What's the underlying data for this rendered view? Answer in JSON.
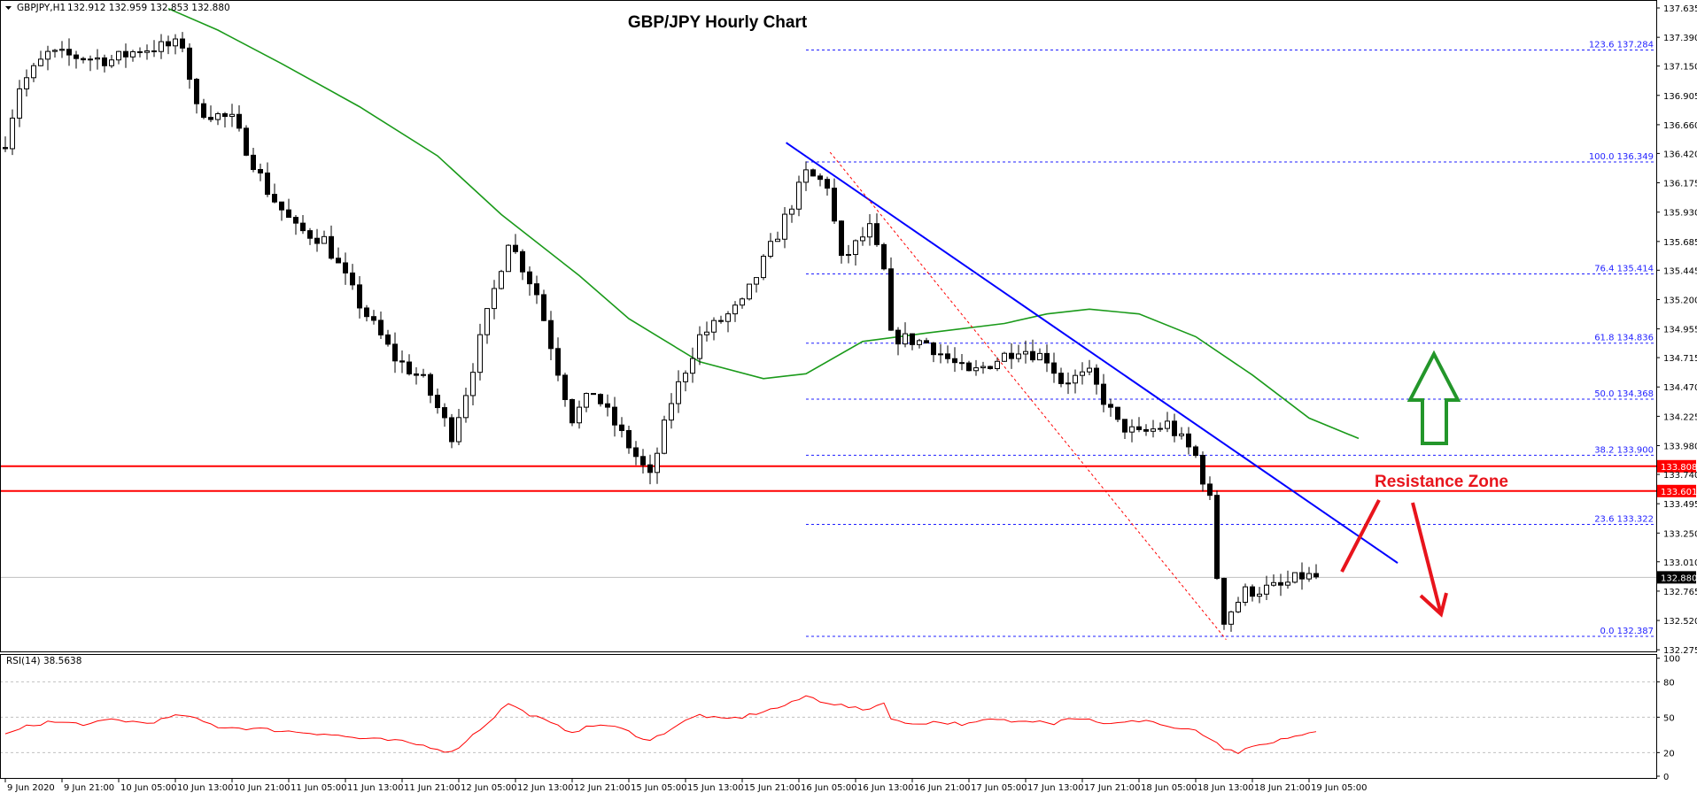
{
  "header": {
    "symbol": "GBPJPY,H1",
    "ohlc": "132.912 132.959 132.853 132.880"
  },
  "chart_data": {
    "type": "candlestick",
    "title": "GBP/JPY Hourly Chart",
    "ylim": [
      132.275,
      137.635
    ],
    "y_ticks": [
      "137.635",
      "137.390",
      "137.150",
      "136.905",
      "136.660",
      "136.420",
      "136.175",
      "135.930",
      "135.685",
      "135.445",
      "135.200",
      "134.955",
      "134.715",
      "134.470",
      "134.225",
      "133.980",
      "133.740",
      "133.495",
      "133.250",
      "133.010",
      "132.765",
      "132.520",
      "132.275"
    ],
    "x_ticks": [
      "9 Jun 2020",
      "9 Jun 21:00",
      "10 Jun 05:00",
      "10 Jun 13:00",
      "10 Jun 21:00",
      "11 Jun 05:00",
      "11 Jun 13:00",
      "11 Jun 21:00",
      "12 Jun 05:00",
      "12 Jun 13:00",
      "12 Jun 21:00",
      "15 Jun 05:00",
      "15 Jun 13:00",
      "15 Jun 21:00",
      "16 Jun 05:00",
      "16 Jun 13:00",
      "16 Jun 21:00",
      "17 Jun 05:00",
      "17 Jun 13:00",
      "17 Jun 21:00",
      "18 Jun 05:00",
      "18 Jun 13:00",
      "18 Jun 21:00",
      "19 Jun 05:00"
    ],
    "bars_per_tick": 8,
    "bar_count": 186,
    "close_keypoints": [
      [
        0,
        136.52
      ],
      [
        2,
        136.98
      ],
      [
        6,
        137.25
      ],
      [
        15,
        137.2
      ],
      [
        19,
        137.29
      ],
      [
        25,
        137.33
      ],
      [
        27,
        136.79
      ],
      [
        32,
        136.7
      ],
      [
        37,
        136.11
      ],
      [
        41,
        135.79
      ],
      [
        45,
        135.7
      ],
      [
        50,
        135.16
      ],
      [
        55,
        134.71
      ],
      [
        59,
        134.52
      ],
      [
        63,
        134.07
      ],
      [
        65,
        134.43
      ],
      [
        68,
        135.07
      ],
      [
        71,
        135.7
      ],
      [
        75,
        135.25
      ],
      [
        78,
        134.61
      ],
      [
        80,
        134.21
      ],
      [
        83,
        134.43
      ],
      [
        87,
        134.07
      ],
      [
        91,
        133.71
      ],
      [
        94,
        134.35
      ],
      [
        98,
        134.89
      ],
      [
        104,
        135.16
      ],
      [
        109,
        135.75
      ],
      [
        113,
        136.25
      ],
      [
        116,
        136.16
      ],
      [
        118,
        135.52
      ],
      [
        122,
        135.79
      ],
      [
        124,
        135.43
      ],
      [
        125,
        134.89
      ],
      [
        130,
        134.84
      ],
      [
        136,
        134.57
      ],
      [
        143,
        134.8
      ],
      [
        147,
        134.71
      ],
      [
        149,
        134.52
      ],
      [
        153,
        134.57
      ],
      [
        157,
        134.16
      ],
      [
        160,
        134.07
      ],
      [
        164,
        134.16
      ],
      [
        168,
        133.89
      ],
      [
        170,
        133.52
      ],
      [
        171,
        132.89
      ],
      [
        172,
        132.53
      ],
      [
        175,
        132.76
      ],
      [
        180,
        132.8
      ],
      [
        183,
        132.89
      ],
      [
        185,
        132.88
      ]
    ],
    "moving_average": {
      "color": "#1a9a1a",
      "points": [
        [
          23,
          137.63
        ],
        [
          30,
          137.45
        ],
        [
          39,
          137.17
        ],
        [
          50,
          136.81
        ],
        [
          61,
          136.4
        ],
        [
          70,
          135.91
        ],
        [
          81,
          135.4
        ],
        [
          88,
          135.04
        ],
        [
          98,
          134.68
        ],
        [
          107,
          134.54
        ],
        [
          113,
          134.58
        ],
        [
          121,
          134.85
        ],
        [
          130,
          134.92
        ],
        [
          141,
          135.0
        ],
        [
          147,
          135.08
        ],
        [
          153,
          135.12
        ],
        [
          160,
          135.08
        ],
        [
          168,
          134.89
        ],
        [
          176,
          134.57
        ],
        [
          184,
          134.21
        ],
        [
          191,
          134.04
        ]
      ]
    },
    "current_price": {
      "value": "132.880",
      "color": "#000000"
    },
    "resistance_lines": [
      {
        "value": "133.808"
      },
      {
        "value": "133.601"
      }
    ],
    "resistance_color": "#ff0000",
    "fib_levels": [
      {
        "ratio": "123.6",
        "price": "137.284"
      },
      {
        "ratio": "100.0",
        "price": "136.349"
      },
      {
        "ratio": "76.4",
        "price": "135.414"
      },
      {
        "ratio": "61.8",
        "price": "134.836"
      },
      {
        "ratio": "50.0",
        "price": "134.368"
      },
      {
        "ratio": "38.2",
        "price": "133.900"
      },
      {
        "ratio": "23.6",
        "price": "133.322"
      },
      {
        "ratio": "0.0",
        "price": "132.387"
      }
    ],
    "trendline": {
      "color": "#0000ff",
      "from": [
        110.2,
        136.51
      ],
      "to": [
        196.5,
        133.0
      ]
    },
    "fib_swing_line": {
      "color": "#ff0000",
      "from": [
        116.4,
        136.43
      ],
      "to": [
        172.3,
        132.36
      ]
    },
    "annotation": "Resistance Zone",
    "rsi": {
      "label": "RSI(14) 38.5638",
      "levels": [
        "100",
        "80",
        "50",
        "20",
        "0"
      ],
      "color": "#ff0000",
      "keypoints": [
        [
          0,
          35
        ],
        [
          3,
          42
        ],
        [
          6,
          46
        ],
        [
          12,
          44
        ],
        [
          15,
          48
        ],
        [
          20,
          45
        ],
        [
          25,
          52
        ],
        [
          28,
          46
        ],
        [
          30,
          42
        ],
        [
          36,
          40
        ],
        [
          40,
          38
        ],
        [
          45,
          36
        ],
        [
          50,
          32
        ],
        [
          55,
          30
        ],
        [
          60,
          25
        ],
        [
          63,
          20
        ],
        [
          66,
          35
        ],
        [
          68,
          45
        ],
        [
          71,
          62
        ],
        [
          73,
          55
        ],
        [
          75,
          50
        ],
        [
          78,
          42
        ],
        [
          80,
          38
        ],
        [
          84,
          44
        ],
        [
          87,
          40
        ],
        [
          91,
          30
        ],
        [
          95,
          44
        ],
        [
          98,
          52
        ],
        [
          101,
          48
        ],
        [
          104,
          50
        ],
        [
          107,
          55
        ],
        [
          109,
          58
        ],
        [
          111,
          62
        ],
        [
          113,
          68
        ],
        [
          115,
          64
        ],
        [
          118,
          60
        ],
        [
          121,
          56
        ],
        [
          122,
          58
        ],
        [
          124,
          62
        ],
        [
          125,
          50
        ],
        [
          127,
          44
        ],
        [
          131,
          46
        ],
        [
          136,
          44
        ],
        [
          139,
          48
        ],
        [
          143,
          46
        ],
        [
          146,
          48
        ],
        [
          148,
          45
        ],
        [
          150,
          50
        ],
        [
          153,
          48
        ],
        [
          156,
          44
        ],
        [
          159,
          46
        ],
        [
          161,
          48
        ],
        [
          164,
          42
        ],
        [
          168,
          38
        ],
        [
          170,
          32
        ],
        [
          172,
          22
        ],
        [
          174,
          20
        ],
        [
          177,
          26
        ],
        [
          179,
          28
        ],
        [
          181,
          33
        ],
        [
          184,
          36
        ],
        [
          186,
          38
        ]
      ]
    }
  }
}
